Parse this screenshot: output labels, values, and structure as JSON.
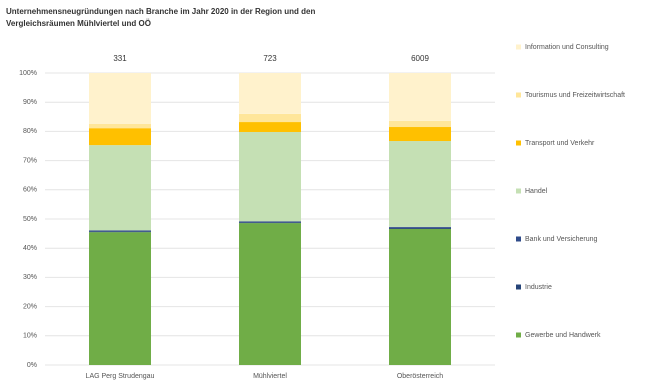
{
  "chart_data": {
    "type": "stacked_bar_100",
    "title": "Unternehmensneugründungen nach Branche im Jahr 2020 in der Region und den Vergleichsräumen Mühlviertel und OÖ",
    "categories": [
      "LAG Perg Strudengau",
      "Mühlviertel",
      "Oberösterreich"
    ],
    "totals": [
      331,
      723,
      6009
    ],
    "series": [
      {
        "name": "Gewerbe und Handwerk",
        "color": "#70ad47",
        "values": [
          45.5,
          48.6,
          46.6
        ]
      },
      {
        "name": "Industrie",
        "color": "#264478",
        "values": [
          0.3,
          0.3,
          0.4
        ]
      },
      {
        "name": "Bank und Versicherung",
        "color": "#2f4b8a",
        "values": [
          0.3,
          0.3,
          0.3
        ]
      },
      {
        "name": "Handel",
        "color": "#c5e0b4",
        "values": [
          29.2,
          30.6,
          29.4
        ]
      },
      {
        "name": "Transport und Verkehr",
        "color": "#ffc000",
        "values": [
          5.8,
          3.4,
          4.8
        ]
      },
      {
        "name": "Tourismus und Freizeitwirtschaft",
        "color": "#ffe699",
        "values": [
          1.5,
          2.8,
          2.1
        ]
      },
      {
        "name": "Information und Consulting",
        "color": "#fff2cc",
        "values": [
          17.4,
          14.0,
          16.4
        ]
      }
    ],
    "ylim": [
      0,
      100
    ],
    "yticks": [
      {
        "value": 0,
        "label": "0%"
      },
      {
        "value": 10,
        "label": "10%"
      },
      {
        "value": 20,
        "label": "20%"
      },
      {
        "value": 30,
        "label": "30%"
      },
      {
        "value": 40,
        "label": "40%"
      },
      {
        "value": 50,
        "label": "50%"
      },
      {
        "value": 60,
        "label": "60%"
      },
      {
        "value": 70,
        "label": "70%"
      },
      {
        "value": 80,
        "label": "80%"
      },
      {
        "value": 90,
        "label": "90%"
      },
      {
        "value": 100,
        "label": "100%"
      }
    ],
    "grid": true,
    "legend": "right"
  }
}
